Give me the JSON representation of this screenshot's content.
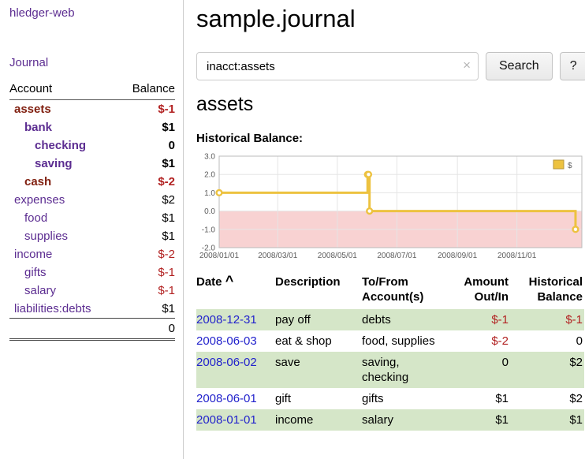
{
  "colors": {
    "link_purple": "#5c2d91",
    "date_blue": "#2222cc",
    "negative_red": "#b22222",
    "maroon_account": "#801f0f",
    "row_green": "#d5e6c8",
    "chart_line": "#edc240",
    "chart_negative_fill": "#f8d2d2",
    "chart_grid": "#e5e5e5",
    "plot_border": "#bbbbbb"
  },
  "sidebar": {
    "app_title": "hledger-web",
    "journal_link": "Journal",
    "accounts": {
      "header": {
        "account": "Account",
        "balance": "Balance"
      },
      "rows": [
        {
          "name": "assets",
          "balance": "$-1",
          "indent": 0,
          "bold": true,
          "name_color": "maroon",
          "balance_negative": true
        },
        {
          "name": "bank",
          "balance": "$1",
          "indent": 1,
          "bold": true,
          "balance_negative": false
        },
        {
          "name": "checking",
          "balance": "0",
          "indent": 2,
          "bold": true,
          "balance_negative": false
        },
        {
          "name": "saving",
          "balance": "$1",
          "indent": 2,
          "bold": true,
          "balance_negative": false
        },
        {
          "name": "cash",
          "balance": "$-2",
          "indent": 1,
          "bold": true,
          "name_color": "maroon",
          "balance_negative": true
        },
        {
          "name": "expenses",
          "balance": "$2",
          "indent": 0,
          "bold": false,
          "balance_negative": false
        },
        {
          "name": "food",
          "balance": "$1",
          "indent": 1,
          "bold": false,
          "balance_negative": false
        },
        {
          "name": "supplies",
          "balance": "$1",
          "indent": 1,
          "bold": false,
          "balance_negative": false
        },
        {
          "name": "income",
          "balance": "$-2",
          "indent": 0,
          "bold": false,
          "balance_negative": true
        },
        {
          "name": "gifts",
          "balance": "$-1",
          "indent": 1,
          "bold": false,
          "balance_negative": true
        },
        {
          "name": "salary",
          "balance": "$-1",
          "indent": 1,
          "bold": false,
          "balance_negative": true
        },
        {
          "name": "liabilities:debts",
          "balance": "$1",
          "indent": 0,
          "bold": false,
          "balance_negative": false
        }
      ],
      "total": "0"
    }
  },
  "header": {
    "title": "sample.journal"
  },
  "search": {
    "value": "inacct:assets",
    "clear_icon": "×",
    "search_button": "Search",
    "help_button": "?"
  },
  "account_page": {
    "heading": "assets",
    "chart_label": "Historical Balance:"
  },
  "chart_data": {
    "type": "line",
    "step": true,
    "title": "Historical Balance",
    "series": [
      {
        "name": "$",
        "points": [
          [
            "2008-01-01",
            1
          ],
          [
            "2008-06-01",
            2
          ],
          [
            "2008-06-02",
            2
          ],
          [
            "2008-06-03",
            0
          ],
          [
            "2008-12-31",
            -1
          ]
        ]
      }
    ],
    "x_ticks": [
      "2008/01/01",
      "2008/03/01",
      "2008/05/01",
      "2008/07/01",
      "2008/09/01",
      "2008/11/01"
    ],
    "y_ticks": [
      3.0,
      2.0,
      1.0,
      0.0,
      -1.0,
      -2.0
    ],
    "ylim": [
      -2,
      3
    ],
    "xlim": [
      "2008-01-01",
      "2009-01-01"
    ],
    "grid": true,
    "legend": {
      "label": "$",
      "position": "top-right"
    },
    "negative_region_shaded": true
  },
  "register": {
    "headers": {
      "date": "Date",
      "sort_indicator": "^",
      "description": "Description",
      "accounts": "To/From Account(s)",
      "amount": "Amount Out/In",
      "balance": "Historical Balance"
    },
    "rows": [
      {
        "date": "2008-12-31",
        "description": "pay off",
        "accounts": "debts",
        "amount": "$-1",
        "amount_negative": true,
        "balance": "$-1",
        "balance_negative": true,
        "highlighted": true
      },
      {
        "date": "2008-06-03",
        "description": "eat & shop",
        "accounts": "food, supplies",
        "amount": "$-2",
        "amount_negative": true,
        "balance": "0",
        "balance_negative": false,
        "highlighted": false
      },
      {
        "date": "2008-06-02",
        "description": "save",
        "accounts": "saving, checking",
        "amount": "0",
        "amount_negative": false,
        "balance": "$2",
        "balance_negative": false,
        "highlighted": true
      },
      {
        "date": "2008-06-01",
        "description": "gift",
        "accounts": "gifts",
        "amount": "$1",
        "amount_negative": false,
        "balance": "$2",
        "balance_negative": false,
        "highlighted": false
      },
      {
        "date": "2008-01-01",
        "description": "income",
        "accounts": "salary",
        "amount": "$1",
        "amount_negative": false,
        "balance": "$1",
        "balance_negative": false,
        "highlighted": true
      }
    ]
  }
}
